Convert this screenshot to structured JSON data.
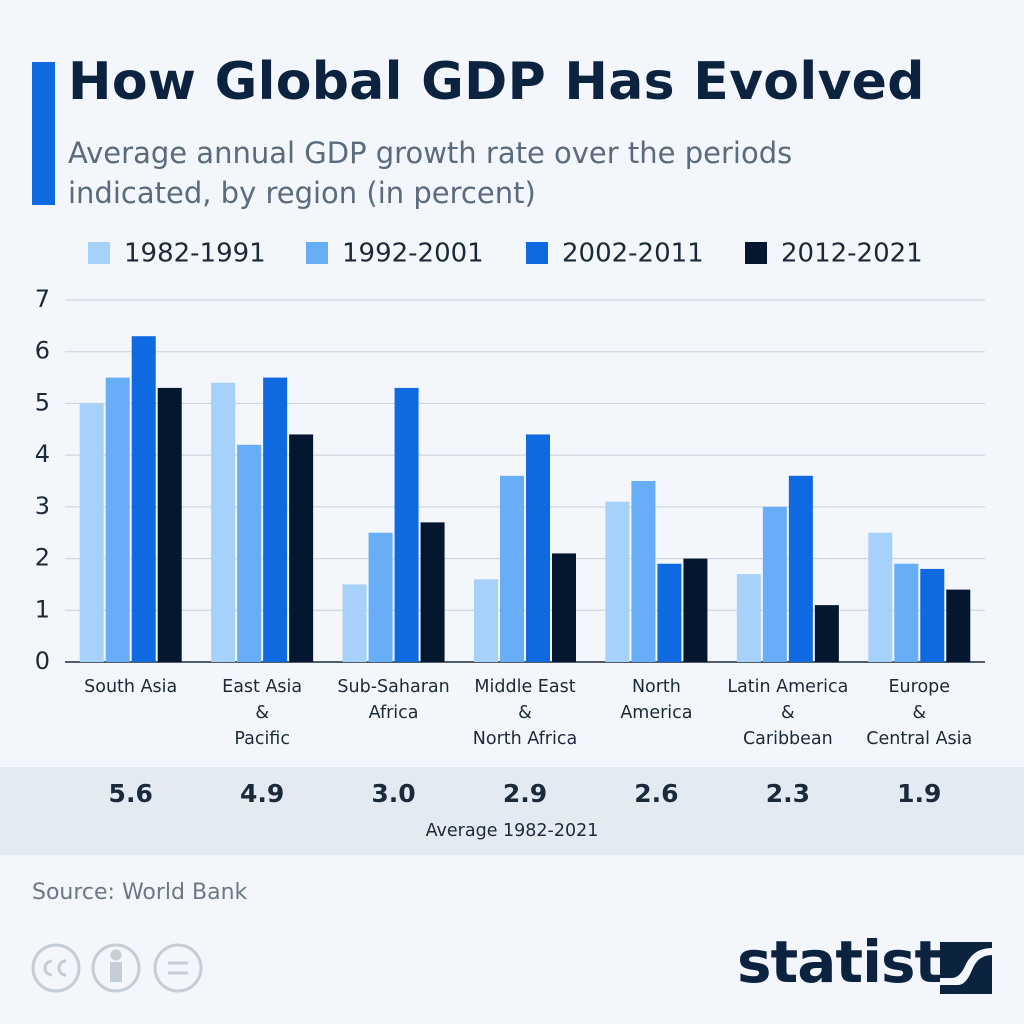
{
  "chart_data": {
    "type": "bar",
    "title": "How Global GDP Has Evolved",
    "subtitle": "Average annual GDP growth rate over the periods indicated, by region (in percent)",
    "categories": [
      "South Asia",
      "East Asia\n&\nPacific",
      "Sub-Saharan\nAfrica",
      "Middle East\n&\nNorth Africa",
      "North\nAmerica",
      "Latin America\n&\nCaribbean",
      "Europe\n&\nCentral Asia"
    ],
    "series": [
      {
        "name": "1982-1991",
        "color": "#a6d1fb",
        "values": [
          5.0,
          5.4,
          1.5,
          1.6,
          3.1,
          1.7,
          2.5
        ]
      },
      {
        "name": "1992-2001",
        "color": "#68aef6",
        "values": [
          5.5,
          4.2,
          2.5,
          3.6,
          3.5,
          3.0,
          1.9
        ]
      },
      {
        "name": "2002-2011",
        "color": "#0f69e0",
        "values": [
          6.3,
          5.5,
          5.3,
          4.4,
          1.9,
          3.6,
          1.8
        ]
      },
      {
        "name": "2012-2021",
        "color": "#04172e",
        "values": [
          5.3,
          4.4,
          2.7,
          2.1,
          2.0,
          1.1,
          1.4
        ]
      }
    ],
    "ylim": [
      0,
      7
    ],
    "yticks": [
      0,
      1,
      2,
      3,
      4,
      5,
      6,
      7
    ],
    "grid": true,
    "averages": {
      "label": "Average 1982-2021",
      "values": [
        5.6,
        4.9,
        3.0,
        2.9,
        2.6,
        2.3,
        1.9
      ],
      "value_labels": [
        "5.6",
        "4.9",
        "3.0",
        "2.9",
        "2.6",
        "2.3",
        "1.9"
      ]
    },
    "source": "Source: World Bank",
    "brand": "statista"
  }
}
